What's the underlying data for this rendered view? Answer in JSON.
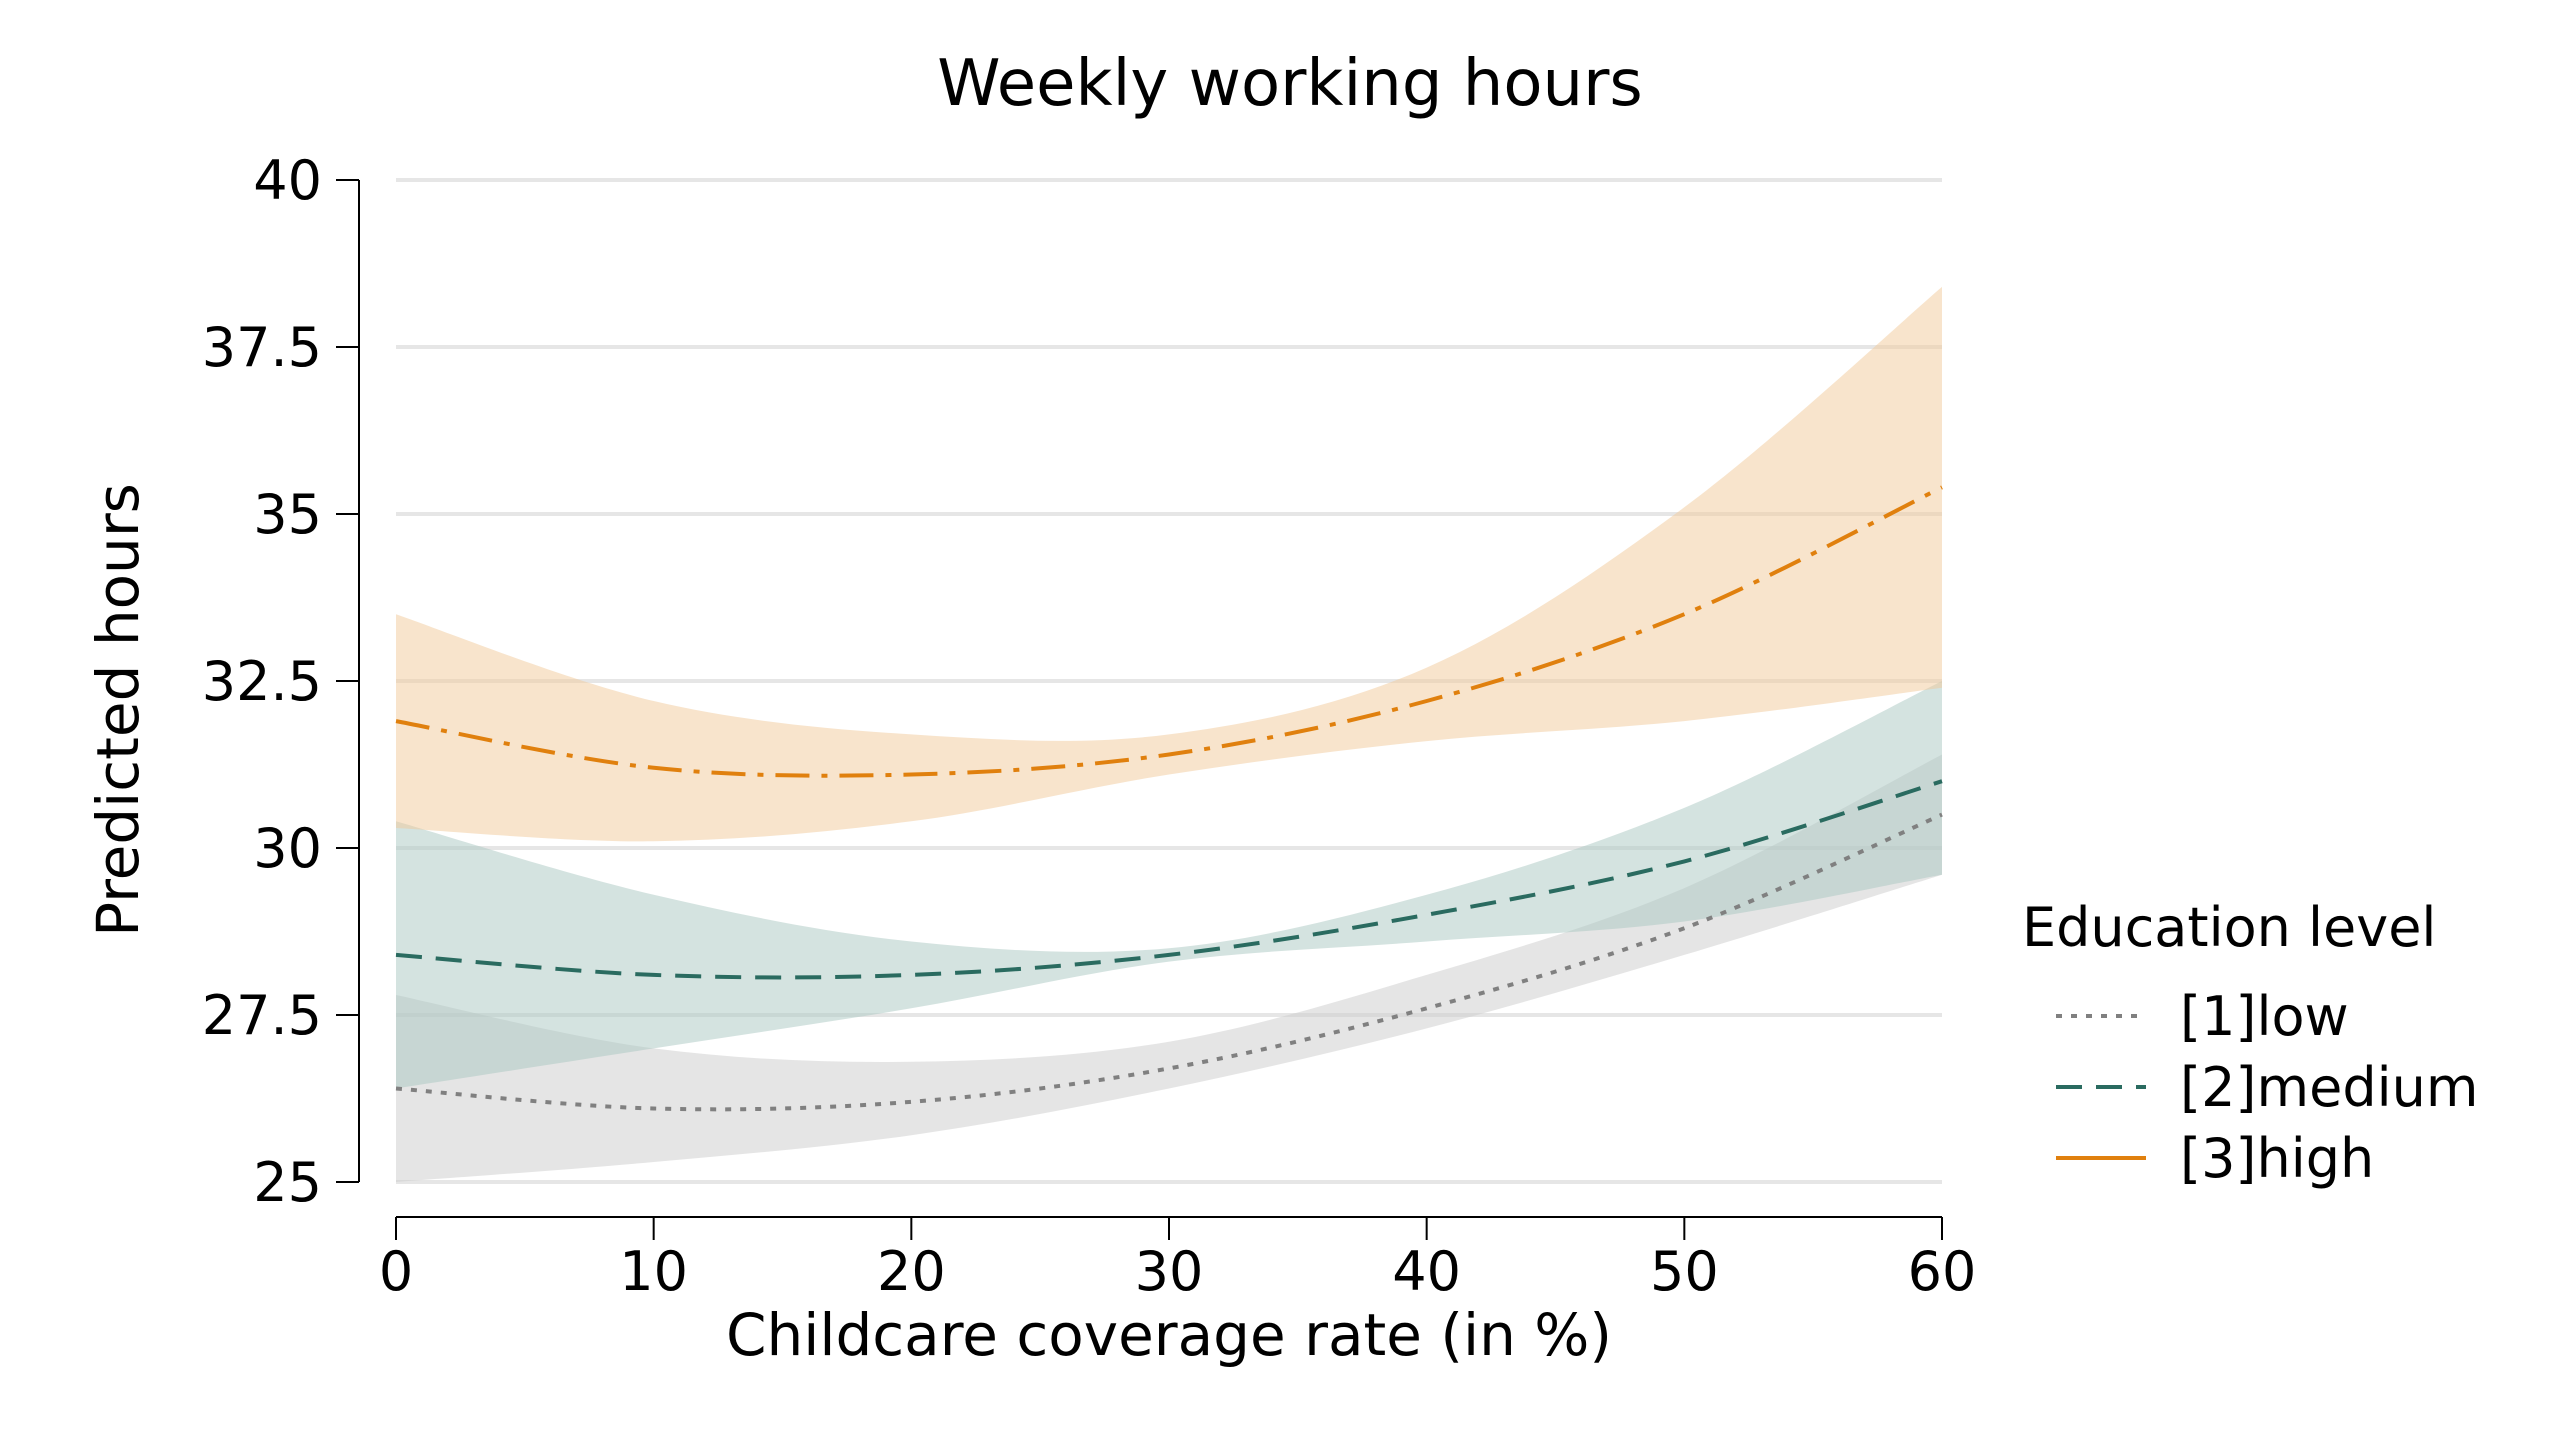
{
  "chart_data": {
    "type": "line",
    "title": "Weekly working hours",
    "xlabel": "Childcare coverage rate (in %)",
    "ylabel": "Predicted hours",
    "xlim": [
      0,
      60
    ],
    "ylim": [
      25,
      40
    ],
    "x_ticks": [
      0,
      10,
      20,
      30,
      40,
      50,
      60
    ],
    "x_tick_labels": [
      "0",
      "10",
      "20",
      "30",
      "40",
      "50",
      "60"
    ],
    "y_ticks": [
      25,
      27.5,
      30,
      32.5,
      35,
      37.5,
      40
    ],
    "y_tick_labels": [
      "25",
      "27.5",
      "30",
      "32.5",
      "35",
      "37.5",
      "40"
    ],
    "grid": "horizontal",
    "legend": {
      "title": "Education level",
      "placement": "right"
    },
    "x": [
      0,
      10,
      20,
      30,
      40,
      50,
      60
    ],
    "series": [
      {
        "name": "[1]low",
        "color": "#808080",
        "band_color": "#cccccc",
        "line_style": "dotted",
        "values": [
          26.4,
          26.1,
          26.2,
          26.7,
          27.6,
          28.8,
          30.5
        ],
        "ci_lower": [
          25.0,
          25.3,
          25.7,
          26.4,
          27.3,
          28.4,
          29.6
        ],
        "ci_upper": [
          27.8,
          27.0,
          26.8,
          27.1,
          28.1,
          29.4,
          31.4
        ]
      },
      {
        "name": "[2]medium",
        "color": "#2a6b60",
        "band_color": "#a9c8c1",
        "line_style": "dashed",
        "values": [
          28.4,
          28.1,
          28.1,
          28.4,
          29.0,
          29.8,
          31.0
        ],
        "ci_lower": [
          26.4,
          27.0,
          27.6,
          28.3,
          28.6,
          28.9,
          29.6
        ],
        "ci_upper": [
          30.4,
          29.3,
          28.6,
          28.5,
          29.3,
          30.6,
          32.5
        ]
      },
      {
        "name": "[3]high",
        "color": "#e0800e",
        "band_color": "#f2c99a",
        "line_style": "dashdot",
        "values": [
          31.9,
          31.2,
          31.1,
          31.4,
          32.2,
          33.5,
          35.4
        ],
        "ci_lower": [
          30.3,
          30.1,
          30.4,
          31.1,
          31.6,
          31.9,
          32.4
        ],
        "ci_upper": [
          33.5,
          32.2,
          31.7,
          31.7,
          32.7,
          35.1,
          38.4
        ]
      }
    ]
  }
}
